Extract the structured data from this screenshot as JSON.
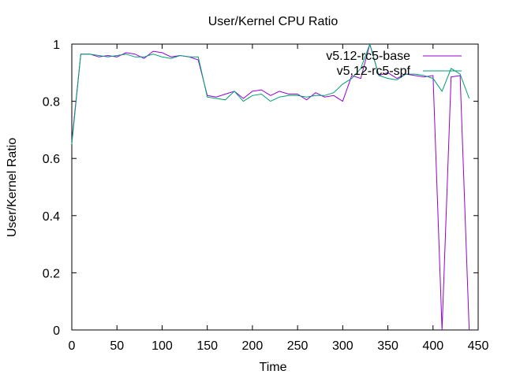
{
  "chart_data": {
    "type": "line",
    "title": "User/Kernel CPU Ratio",
    "xlabel": "Time",
    "ylabel": "User/Kernel Ratio",
    "xlim": [
      0,
      450
    ],
    "ylim": [
      0,
      1
    ],
    "x_ticks": [
      0,
      50,
      100,
      150,
      200,
      250,
      300,
      350,
      400,
      450
    ],
    "y_ticks": [
      0,
      0.2,
      0.4,
      0.6,
      0.8,
      1
    ],
    "x_tick_labels": [
      "0",
      "50",
      "100",
      "150",
      "200",
      "250",
      "300",
      "350",
      "400",
      "450"
    ],
    "y_tick_labels": [
      "0",
      "0.2",
      "0.4",
      "0.6",
      "0.8",
      "1"
    ],
    "grid": false,
    "legend_position": "top-right",
    "series": [
      {
        "name": "v5.12-rc5-base",
        "color": "#9400d3",
        "x": [
          0,
          10,
          20,
          30,
          40,
          50,
          60,
          70,
          80,
          90,
          100,
          110,
          120,
          130,
          140,
          150,
          160,
          170,
          180,
          190,
          200,
          210,
          220,
          230,
          240,
          250,
          260,
          270,
          280,
          290,
          300,
          310,
          320,
          330,
          340,
          350,
          360,
          370,
          380,
          390,
          400,
          410,
          420,
          430,
          440
        ],
        "y": [
          0.66,
          0.965,
          0.965,
          0.955,
          0.96,
          0.955,
          0.97,
          0.965,
          0.95,
          0.975,
          0.97,
          0.955,
          0.96,
          0.955,
          0.945,
          0.82,
          0.815,
          0.825,
          0.835,
          0.81,
          0.835,
          0.84,
          0.82,
          0.835,
          0.825,
          0.825,
          0.805,
          0.83,
          0.815,
          0.82,
          0.8,
          0.89,
          0.88,
          1.0,
          0.89,
          0.9,
          0.88,
          0.895,
          0.89,
          0.885,
          0.89,
          0.0,
          0.885,
          0.89,
          0.0
        ]
      },
      {
        "name": "v5.12-rc5-spf",
        "color": "#009e73",
        "x": [
          0,
          10,
          20,
          30,
          40,
          50,
          60,
          70,
          80,
          90,
          100,
          110,
          120,
          130,
          140,
          150,
          160,
          170,
          180,
          190,
          200,
          210,
          220,
          230,
          240,
          250,
          260,
          270,
          280,
          290,
          300,
          310,
          320,
          330,
          340,
          350,
          360,
          370,
          380,
          390,
          400,
          410,
          420,
          430,
          440
        ],
        "y": [
          0.65,
          0.965,
          0.965,
          0.96,
          0.955,
          0.96,
          0.965,
          0.955,
          0.955,
          0.965,
          0.955,
          0.95,
          0.96,
          0.955,
          0.955,
          0.815,
          0.81,
          0.805,
          0.835,
          0.8,
          0.82,
          0.825,
          0.8,
          0.815,
          0.82,
          0.82,
          0.815,
          0.82,
          0.82,
          0.83,
          0.86,
          0.88,
          0.915,
          1.0,
          0.89,
          0.88,
          0.875,
          0.895,
          0.895,
          0.89,
          0.88,
          0.835,
          0.915,
          0.895,
          0.81
        ]
      }
    ]
  }
}
